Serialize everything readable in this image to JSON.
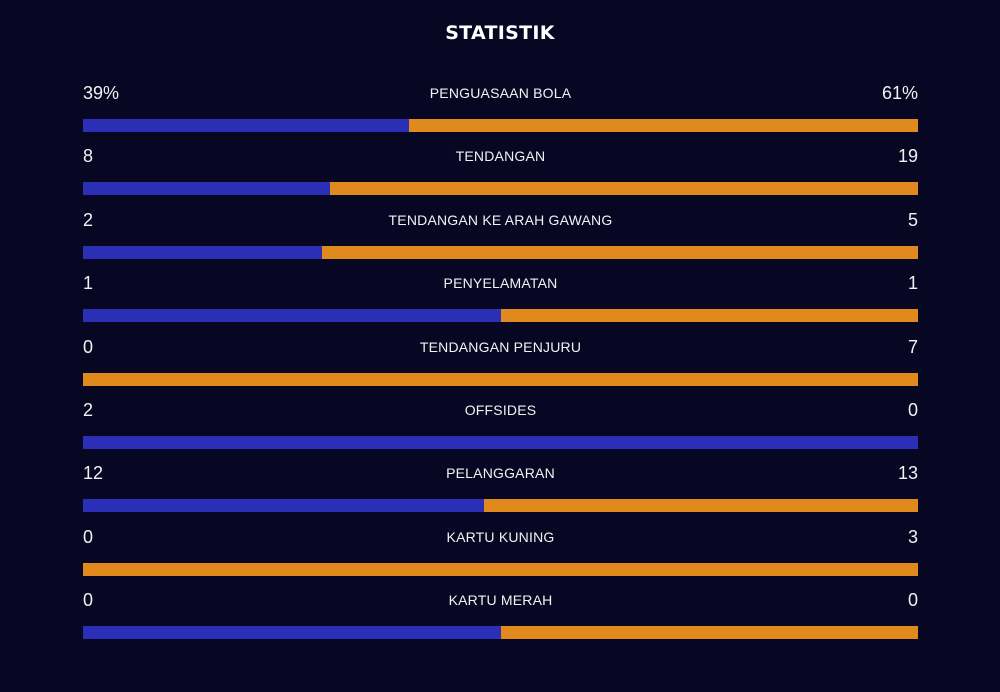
{
  "title": "STATISTIK",
  "colors": {
    "background": "#070723",
    "home": "#2b2fb5",
    "away": "#e08a1e"
  },
  "stats": [
    {
      "label": "PENGUASAAN BOLA",
      "home": "39%",
      "away": "61%",
      "home_value": 39,
      "away_value": 61
    },
    {
      "label": "TENDANGAN",
      "home": "8",
      "away": "19",
      "home_value": 8,
      "away_value": 19
    },
    {
      "label": "TENDANGAN KE ARAH GAWANG",
      "home": "2",
      "away": "5",
      "home_value": 2,
      "away_value": 5
    },
    {
      "label": "PENYELAMATAN",
      "home": "1",
      "away": "1",
      "home_value": 1,
      "away_value": 1
    },
    {
      "label": "TENDANGAN PENJURU",
      "home": "0",
      "away": "7",
      "home_value": 0,
      "away_value": 7
    },
    {
      "label": "OFFSIDES",
      "home": "2",
      "away": "0",
      "home_value": 2,
      "away_value": 0
    },
    {
      "label": "PELANGGARAN",
      "home": "12",
      "away": "13",
      "home_value": 12,
      "away_value": 13
    },
    {
      "label": "KARTU KUNING",
      "home": "0",
      "away": "3",
      "home_value": 0,
      "away_value": 3
    },
    {
      "label": "KARTU MERAH",
      "home": "0",
      "away": "0",
      "home_value": 0,
      "away_value": 0
    }
  ]
}
